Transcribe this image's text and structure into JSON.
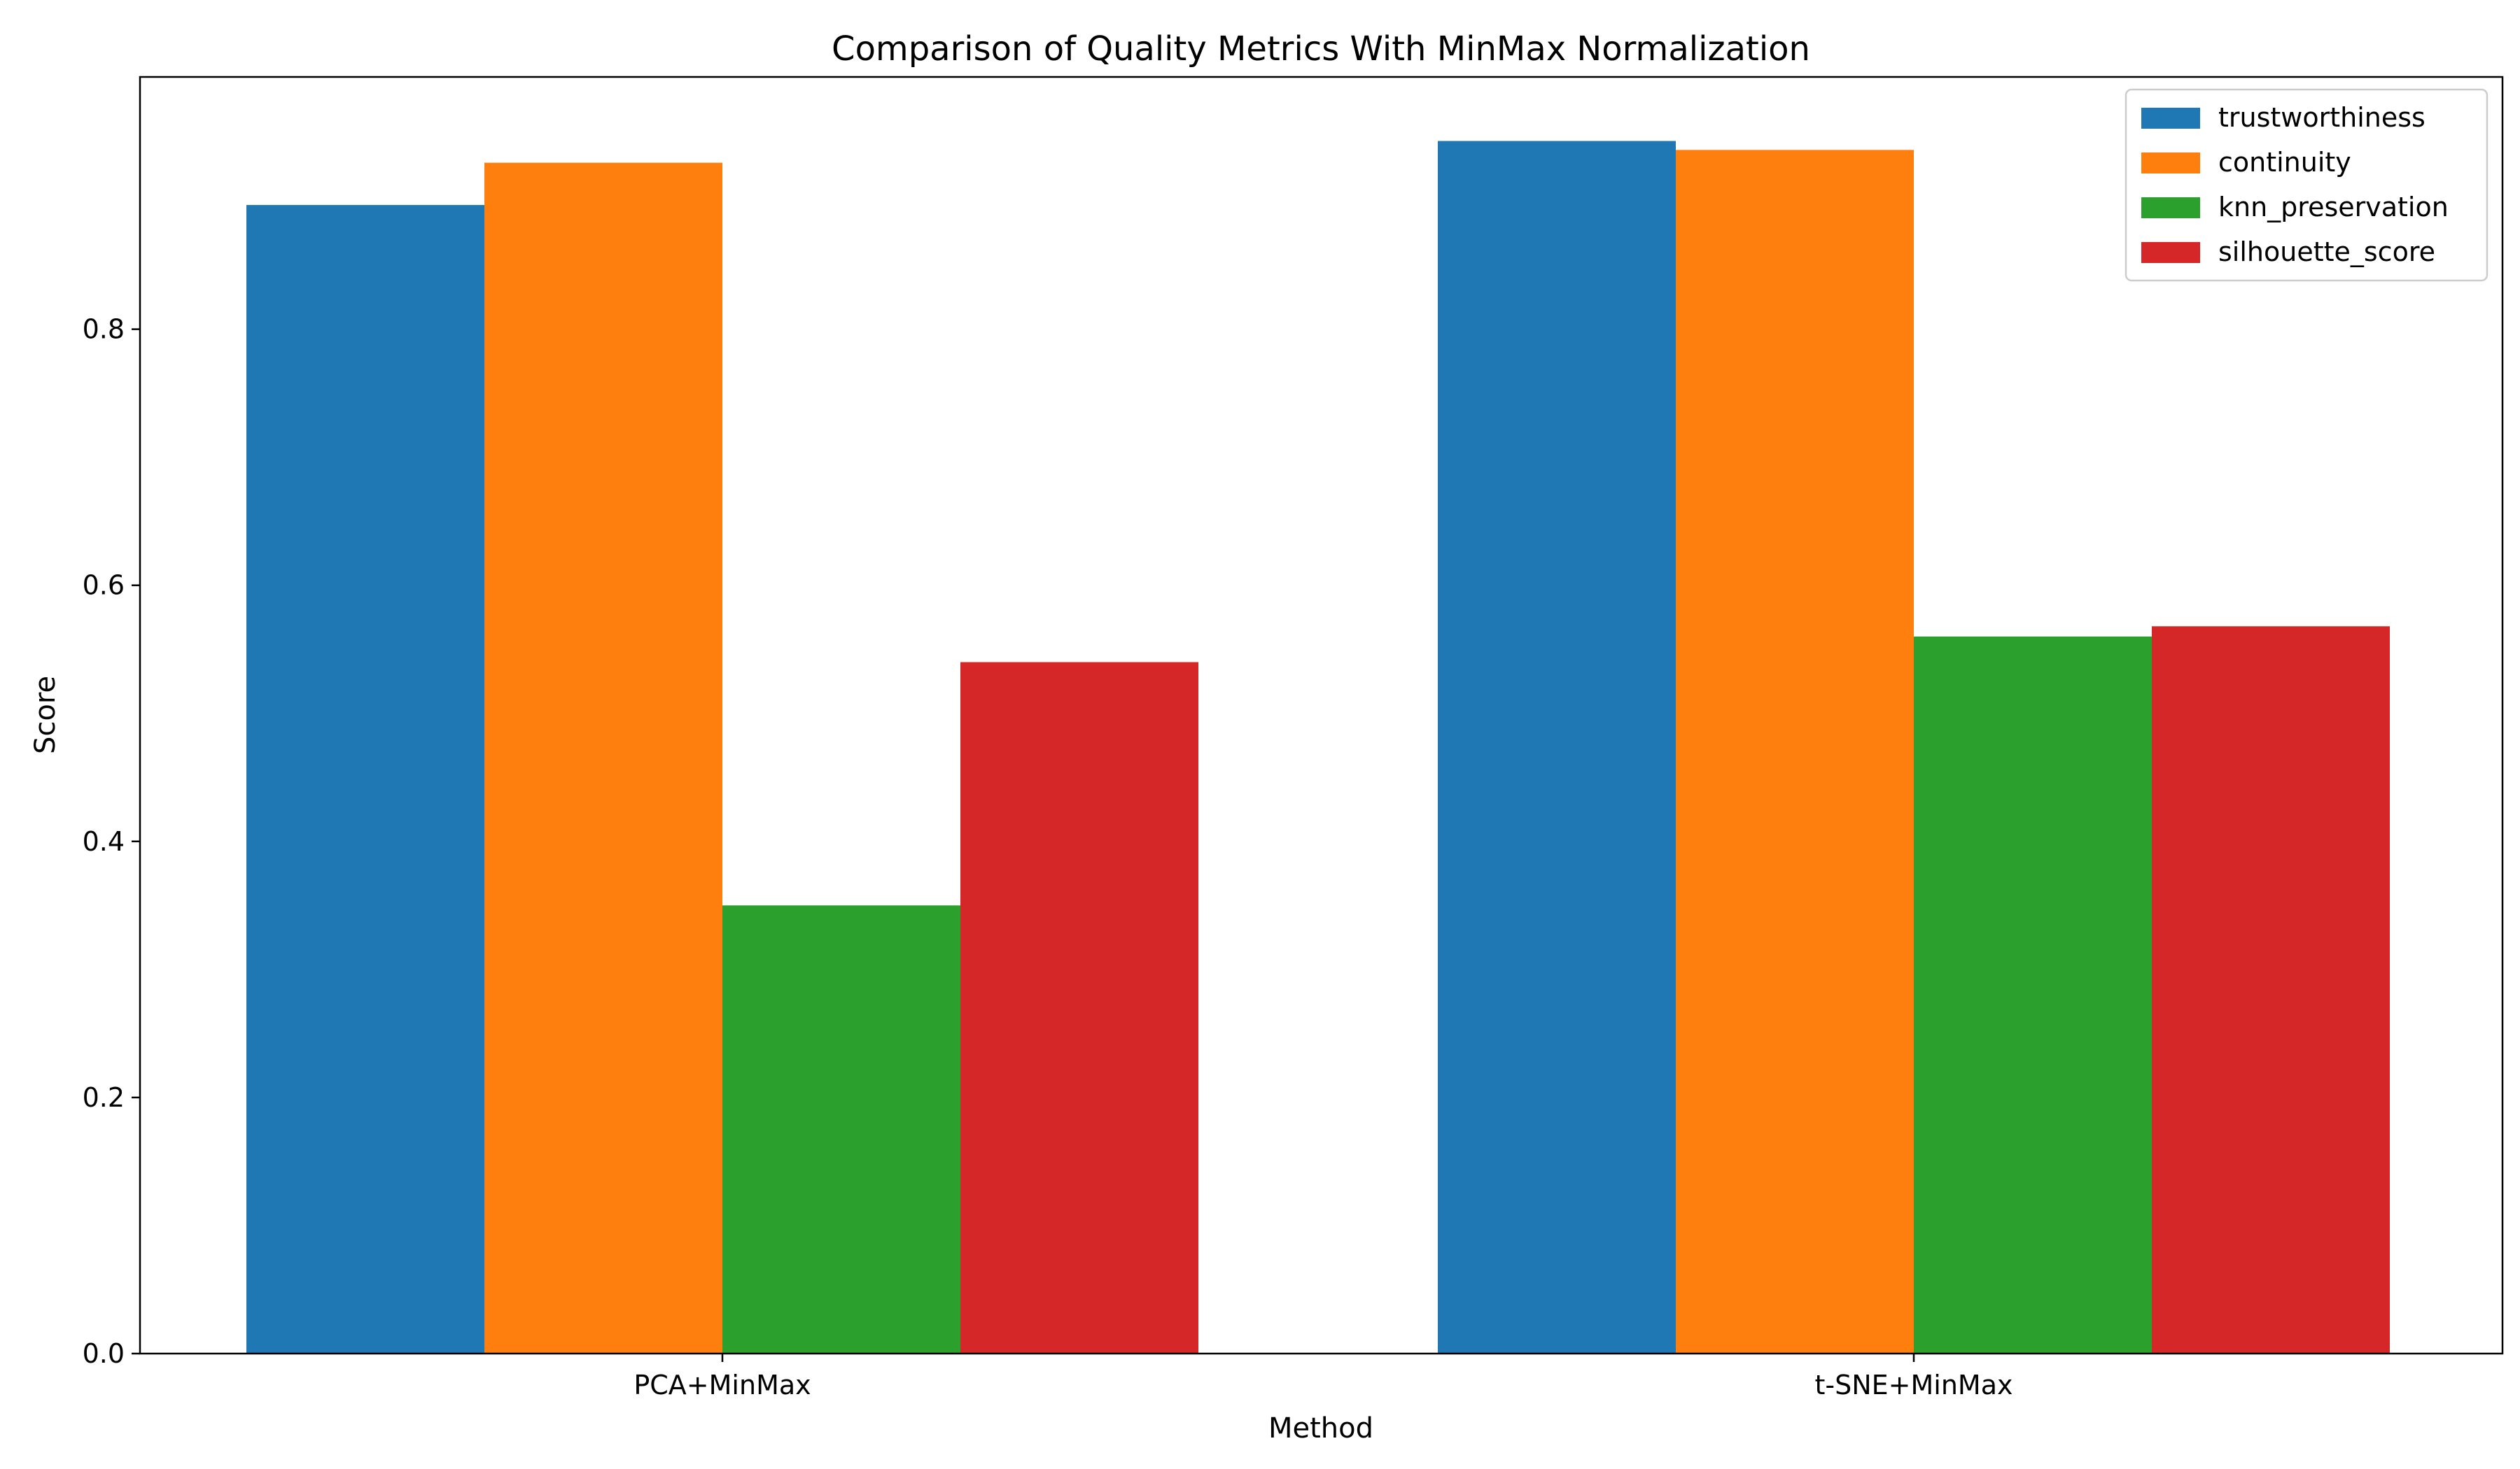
{
  "chart_data": {
    "type": "bar",
    "title": "Comparison of Quality Metrics With MinMax Normalization",
    "xlabel": "Method",
    "ylabel": "Score",
    "categories": [
      "PCA+MinMax",
      "t-SNE+MinMax"
    ],
    "series": [
      {
        "name": "trustworthiness",
        "values": [
          0.897,
          0.947
        ],
        "color": "#1f77b4"
      },
      {
        "name": "continuity",
        "values": [
          0.93,
          0.94
        ],
        "color": "#ff7f0e"
      },
      {
        "name": "knn_preservation",
        "values": [
          0.35,
          0.56
        ],
        "color": "#2ca02c"
      },
      {
        "name": "silhouette_score",
        "values": [
          0.54,
          0.568
        ],
        "color": "#d62728"
      }
    ],
    "ylim": [
      0,
      0.997
    ],
    "yticks": [
      "0.0",
      "0.2",
      "0.4",
      "0.6",
      "0.8"
    ],
    "grid": false,
    "legend_position": "top-right"
  }
}
